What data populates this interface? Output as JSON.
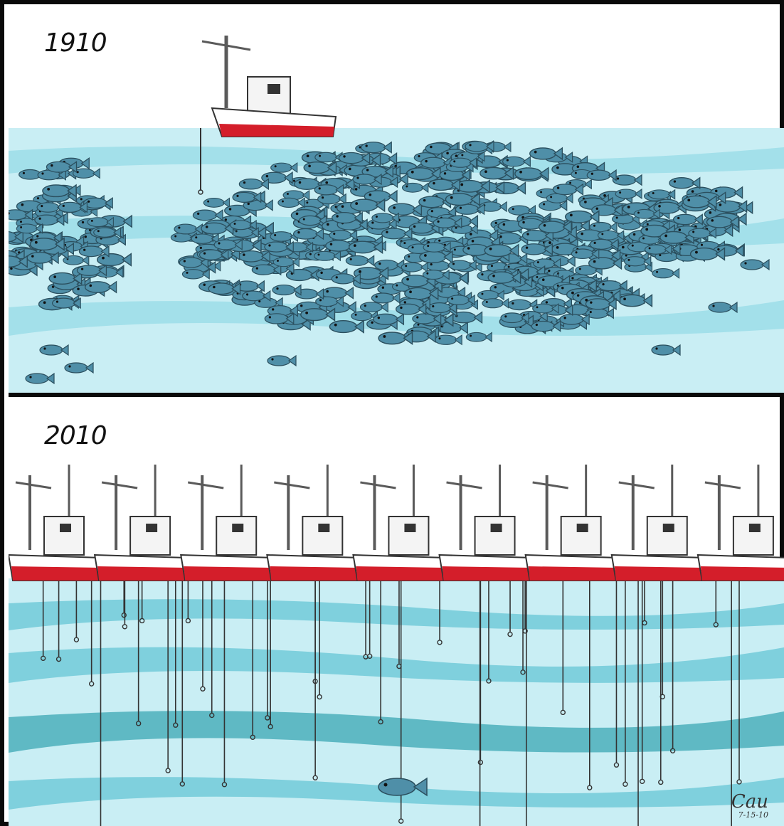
{
  "panels": {
    "top": {
      "year": "1910",
      "boats": 1,
      "fish_density": "abundant"
    },
    "bottom": {
      "year": "2010",
      "boats": 9,
      "fish_count": 1
    }
  },
  "signature": {
    "name": "Cau",
    "date": "7-15-10"
  },
  "colors": {
    "water_light": "#c9eef4",
    "water_band": "#7fd0dd",
    "water_deep": "#5fb9c4",
    "fish": "#4f8fa8",
    "hull_red": "#d41e2a",
    "border": "#0a0a0a"
  }
}
